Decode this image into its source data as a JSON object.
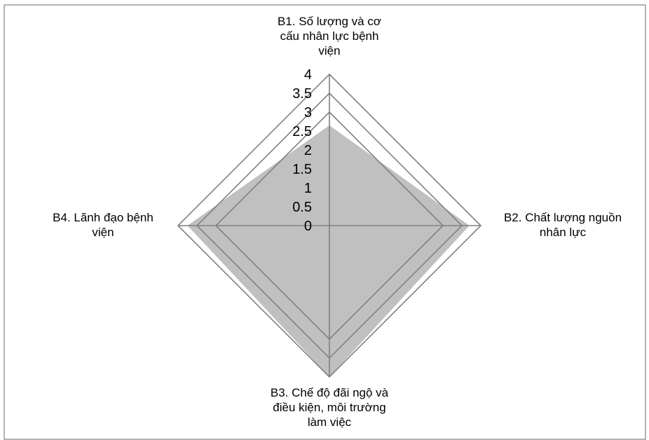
{
  "chart_data": {
    "type": "radar",
    "title": "",
    "categories": [
      "B1. Số lượng và cơ cấu nhân lực bệnh viện",
      "B2. Chất lượng nguồn nhân lực",
      "B3. Chế độ đãi ngộ và điều kiện, môi trường làm việc",
      "B4. Lãnh đạo bệnh viện"
    ],
    "category_label_lines": [
      [
        "B1. Số lượng và cơ",
        "cấu nhân lực bệnh",
        "viện"
      ],
      [
        "B2. Chất lượng nguồn",
        "nhân lực"
      ],
      [
        "B3. Chế độ đãi ngộ và",
        "điều kiện, môi trường",
        "làm việc"
      ],
      [
        "B4. Lãnh đạo bệnh",
        "viện"
      ]
    ],
    "series": [
      {
        "values": [
          2.65,
          3.7,
          4.0,
          3.75
        ]
      }
    ],
    "rlim": [
      0,
      4
    ],
    "ticks": [
      "0",
      "0.5",
      "1",
      "1.5",
      "2",
      "2.5",
      "3",
      "3.5",
      "4"
    ],
    "grid_rings": [
      3,
      3.5,
      4
    ],
    "colors": {
      "fill": "#c0c0c0",
      "grid": "#808080",
      "axis": "#808080",
      "border": "#808080"
    }
  }
}
